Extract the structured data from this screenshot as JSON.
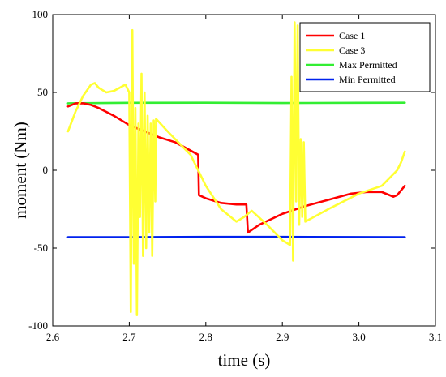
{
  "chart_data": {
    "type": "line",
    "xlabel": "time (s)",
    "ylabel": "moment (Nm)",
    "xlim": [
      2.6,
      3.1
    ],
    "ylim": [
      -100,
      100
    ],
    "x_ticks": [
      2.6,
      2.7,
      2.8,
      2.9,
      3.0,
      3.1
    ],
    "x_tick_labels": [
      "2.6",
      "2.7",
      "2.8",
      "2.9",
      "3.0",
      "3.1"
    ],
    "y_ticks": [
      -100,
      -50,
      0,
      50,
      100
    ],
    "y_tick_labels": [
      "-100",
      "-50",
      "0",
      "50",
      "100"
    ],
    "grid": false,
    "legend_position": "top-right",
    "series": [
      {
        "name": "Case 1",
        "color": "#ff0000",
        "x": [
          2.62,
          2.63,
          2.64,
          2.65,
          2.66,
          2.68,
          2.7,
          2.72,
          2.74,
          2.76,
          2.79,
          2.791,
          2.8,
          2.82,
          2.84,
          2.853,
          2.855,
          2.87,
          2.9,
          2.93,
          2.96,
          2.99,
          3.01,
          3.03,
          3.045,
          3.05,
          3.06
        ],
        "y": [
          41,
          43,
          43,
          42,
          40,
          35,
          29,
          25,
          21,
          18,
          10,
          -16,
          -18,
          -21,
          -22,
          -22,
          -40,
          -35,
          -28,
          -23,
          -19,
          -15,
          -14,
          -14,
          -17,
          -16,
          -10
        ]
      },
      {
        "name": "Case 3",
        "color": "#ffff33",
        "x": [
          2.62,
          2.63,
          2.64,
          2.65,
          2.655,
          2.66,
          2.67,
          2.68,
          2.695,
          2.7,
          2.702,
          2.704,
          2.706,
          2.708,
          2.71,
          2.712,
          2.714,
          2.716,
          2.718,
          2.72,
          2.722,
          2.724,
          2.726,
          2.728,
          2.73,
          2.732,
          2.734,
          2.735,
          2.75,
          2.78,
          2.8,
          2.82,
          2.84,
          2.85,
          2.86,
          2.88,
          2.9,
          2.91,
          2.912,
          2.914,
          2.916,
          2.918,
          2.92,
          2.922,
          2.924,
          2.926,
          2.928,
          2.93,
          2.96,
          3.0,
          3.03,
          3.04,
          3.05,
          3.055,
          3.06
        ],
        "y": [
          25,
          38,
          48,
          55,
          56,
          53,
          50,
          51,
          55,
          50,
          -91,
          90,
          -60,
          40,
          -93,
          30,
          -30,
          62,
          -55,
          50,
          -50,
          35,
          -40,
          30,
          -55,
          32,
          -20,
          33,
          25,
          10,
          -10,
          -25,
          -33,
          -30,
          -26,
          -35,
          -45,
          -48,
          60,
          -58,
          95,
          -20,
          93,
          -35,
          20,
          -30,
          18,
          -33,
          -25,
          -15,
          -10,
          -5,
          0,
          5,
          12
        ]
      },
      {
        "name": "Max Permitted",
        "color": "#33ee33",
        "x": [
          2.62,
          2.7,
          2.8,
          2.9,
          3.0,
          3.06
        ],
        "y": [
          43,
          43.3,
          43.4,
          43.2,
          43.3,
          43.4
        ]
      },
      {
        "name": "Min Permitted",
        "color": "#0022ee",
        "x": [
          2.62,
          2.7,
          2.8,
          2.9,
          3.0,
          3.06
        ],
        "y": [
          -43,
          -43,
          -42.8,
          -42.8,
          -42.9,
          -43
        ]
      }
    ]
  }
}
